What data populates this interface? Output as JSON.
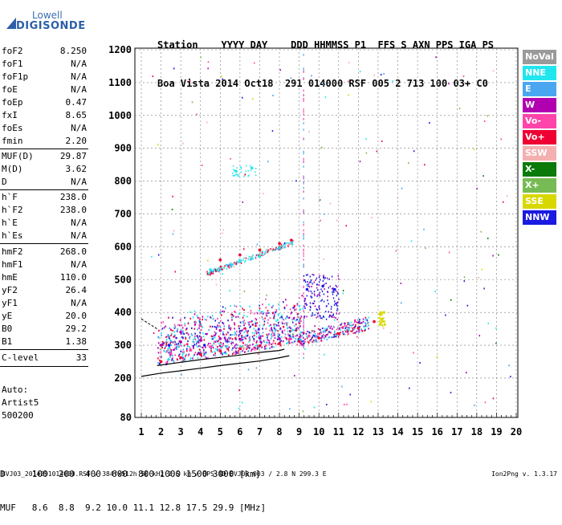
{
  "logo": {
    "top": "Lowell",
    "bottom": "DIGISONDE"
  },
  "header": {
    "row1": "Station    YYYY DAY    DDD HHMMSS P1  FFS S AXN PPS IGA PS",
    "row2": "Boa Vista 2014 Oct18  291 014000 RSF 005 2 713 100 03+ C0"
  },
  "params": [
    {
      "name": "foF2",
      "value": "8.250"
    },
    {
      "name": "foF1",
      "value": "N/A"
    },
    {
      "name": "foF1p",
      "value": "N/A"
    },
    {
      "name": "foE",
      "value": "N/A"
    },
    {
      "name": "foEp",
      "value": "0.47"
    },
    {
      "name": "fxI",
      "value": "8.65"
    },
    {
      "name": "foEs",
      "value": "N/A"
    },
    {
      "name": "fmin",
      "value": "2.20"
    },
    {
      "name": "MUF(D)",
      "value": "29.87"
    },
    {
      "name": "M(D)",
      "value": "3.62"
    },
    {
      "name": "D",
      "value": "N/A"
    },
    {
      "name": "h`F",
      "value": "238.0"
    },
    {
      "name": "h`F2",
      "value": "238.0"
    },
    {
      "name": "h`E",
      "value": "N/A"
    },
    {
      "name": "h`Es",
      "value": "N/A"
    },
    {
      "name": "hmF2",
      "value": "268.0"
    },
    {
      "name": "hmF1",
      "value": "N/A"
    },
    {
      "name": "hmE",
      "value": "110.0"
    },
    {
      "name": "yF2",
      "value": "26.4"
    },
    {
      "name": "yF1",
      "value": "N/A"
    },
    {
      "name": "yE",
      "value": "20.0"
    },
    {
      "name": "B0",
      "value": "29.2"
    },
    {
      "name": "B1",
      "value": "1.38"
    },
    {
      "name": "C-level",
      "value": "33"
    }
  ],
  "auto": {
    "line1": "Auto:",
    "line2": "Artist5",
    "line3": "500200"
  },
  "legend": [
    {
      "label": "NoVal",
      "color": "#9a9a9a"
    },
    {
      "label": "NNE",
      "color": "#22e6ee"
    },
    {
      "label": "E",
      "color": "#4aa6f0"
    },
    {
      "label": "W",
      "color": "#b000b0"
    },
    {
      "label": "Vo-",
      "color": "#ff44aa"
    },
    {
      "label": "Vo+",
      "color": "#ee0033"
    },
    {
      "label": "SSW",
      "color": "#f4b0b0"
    },
    {
      "label": "X-",
      "color": "#0a7a0a"
    },
    {
      "label": "X+",
      "color": "#77bb55"
    },
    {
      "label": "SSE",
      "color": "#d8d800"
    },
    {
      "label": "NNW",
      "color": "#1a1ae0"
    }
  ],
  "footer": {
    "dline": "D     100  200  400  600  800 1000 1500 3000 [km]",
    "mufline": "MUF   8.6  8.8  9.2 10.0 11.1 12.8 17.5 29.9 [MHz]",
    "file": "BVJ03_2014291014000.RSF / 384fx512h 50 kHz 2.5 km / DPS-4D BVJ03 003 / 2.8 N 299.3 E",
    "version": "Ion2Png v. 1.3.17"
  },
  "chart_data": {
    "type": "scatter",
    "xlabel": "",
    "ylabel": "",
    "xlim": [
      1,
      20
    ],
    "ylim": [
      80,
      1200
    ],
    "x_ticks": [
      1,
      2,
      3,
      4,
      5,
      6,
      7,
      8,
      9,
      10,
      11,
      12,
      13,
      14,
      15,
      16,
      17,
      18,
      19,
      20
    ],
    "y_ticks": [
      80,
      200,
      300,
      400,
      500,
      600,
      700,
      800,
      900,
      1000,
      1100,
      1200
    ],
    "grid": true,
    "legend_position": "right",
    "series": [
      {
        "name": "Vo+",
        "color": "#ee0033",
        "points": [
          [
            2.0,
            250
          ],
          [
            3.0,
            262
          ],
          [
            4.0,
            272
          ],
          [
            5.0,
            282
          ],
          [
            6.0,
            290
          ],
          [
            7.0,
            298
          ],
          [
            8.0,
            305
          ],
          [
            9.0,
            312
          ],
          [
            10.0,
            322
          ],
          [
            11.0,
            335
          ],
          [
            12.0,
            352
          ],
          [
            12.8,
            372
          ],
          [
            5.0,
            560
          ],
          [
            6.0,
            575
          ],
          [
            7.0,
            590
          ],
          [
            8.0,
            610
          ],
          [
            8.6,
            620
          ]
        ]
      },
      {
        "name": "W",
        "color": "#b000b0",
        "points": [
          [
            2.0,
            300
          ],
          [
            3.0,
            310
          ],
          [
            4.0,
            315
          ],
          [
            5.0,
            320
          ],
          [
            6.0,
            318
          ],
          [
            7.0,
            322
          ],
          [
            8.0,
            320
          ],
          [
            3.0,
            340
          ],
          [
            5.0,
            345
          ]
        ]
      },
      {
        "name": "NNW",
        "color": "#1a1ae0",
        "points": [
          [
            9.4,
            470
          ],
          [
            10.2,
            480
          ],
          [
            10.8,
            470
          ],
          [
            2.4,
            300
          ],
          [
            4.2,
            300
          ]
        ]
      },
      {
        "name": "NNE",
        "color": "#22e6ee",
        "points": [
          [
            5.8,
            830
          ],
          [
            6.6,
            840
          ],
          [
            4.5,
            530
          ],
          [
            6.0,
            555
          ],
          [
            7.0,
            570
          ]
        ]
      },
      {
        "name": "Vo-",
        "color": "#ff44aa",
        "points": [
          [
            2.5,
            275
          ],
          [
            3.5,
            285
          ],
          [
            4.5,
            295
          ],
          [
            8.5,
            318
          ],
          [
            9.5,
            328
          ]
        ]
      },
      {
        "name": "SSE",
        "color": "#d8d800",
        "points": [
          [
            13.1,
            395
          ],
          [
            13.3,
            400
          ],
          [
            13.2,
            380
          ]
        ]
      }
    ]
  }
}
